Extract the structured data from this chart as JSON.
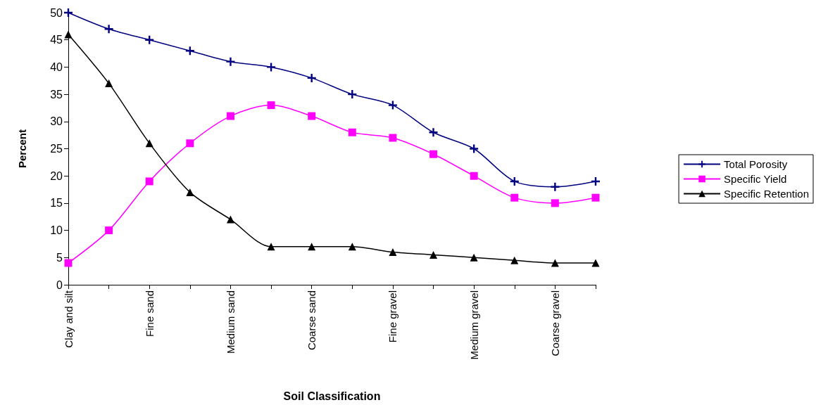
{
  "chart_data": {
    "type": "line",
    "xlabel": "Soil Classification",
    "ylabel": "Percent",
    "categories": [
      "Clay and silt",
      null,
      "Fine sand",
      null,
      "Medium sand",
      null,
      "Coarse sand",
      null,
      "Fine gravel",
      null,
      "Medium gravel",
      null,
      "Coarse gravel",
      null
    ],
    "series": [
      {
        "name": "Total Porosity",
        "color": "#000080",
        "marker": "cross",
        "values": [
          50,
          47,
          45,
          43,
          41,
          40,
          38,
          35,
          33,
          28,
          25,
          19,
          18,
          19
        ]
      },
      {
        "name": "Specific Yield",
        "color": "#ff00ff",
        "marker": "square",
        "values": [
          4,
          10,
          19,
          26,
          31,
          33,
          31,
          28,
          27,
          24,
          20,
          16,
          15,
          16
        ]
      },
      {
        "name": "Specific Retention",
        "color": "#000000",
        "marker": "triangle",
        "values": [
          46,
          37,
          26,
          17,
          12,
          7,
          7,
          7,
          6,
          5.5,
          5,
          4.5,
          4,
          4
        ]
      }
    ],
    "ylim": [
      0,
      50
    ],
    "yticks": [
      0,
      5,
      10,
      15,
      20,
      25,
      30,
      35,
      40,
      45,
      50
    ],
    "grid": false,
    "legend": "right",
    "line_style": "solid"
  }
}
